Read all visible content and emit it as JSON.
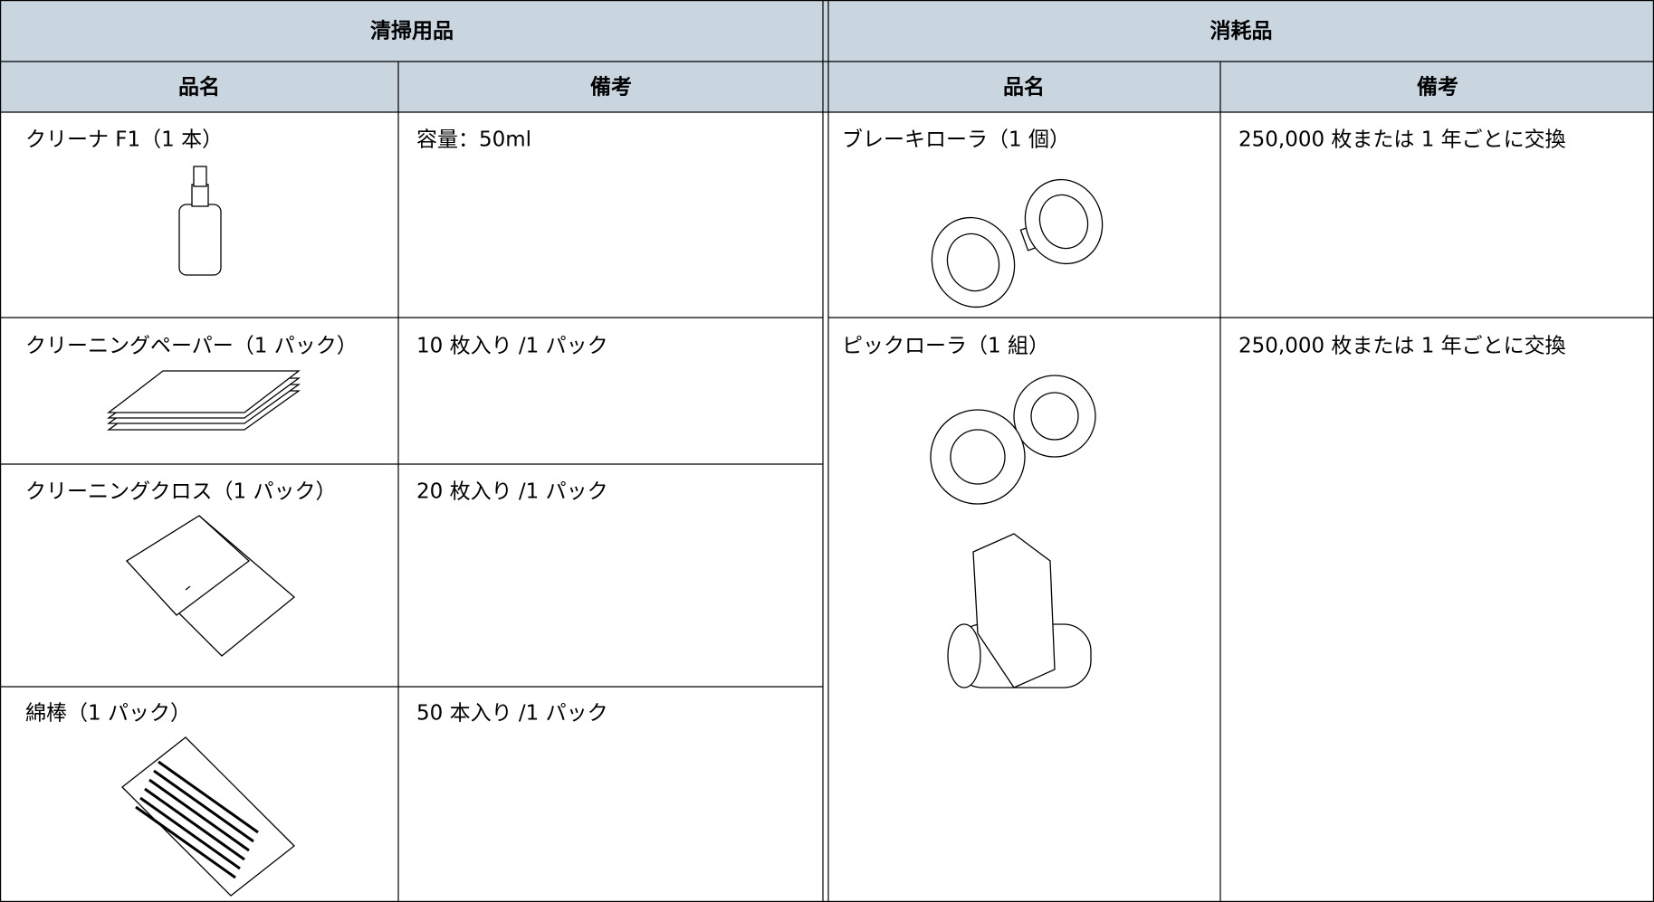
{
  "header": {
    "cleaning": "清掃用品",
    "consumables": "消耗品"
  },
  "cleaning": {
    "columns": [
      "品名",
      "備考"
    ],
    "rows": [
      [
        "クリーナ F1（1 本）",
        "容量：50ml"
      ],
      [
        "クリーニングペーパー（1 パック）",
        "10 枚入り /1 パック"
      ],
      [
        "クリーニングクロス（1 パック）",
        "20 枚入り /1 パック"
      ],
      [
        "綿棒（1 パック）",
        "50 本入り /1 パック"
      ]
    ]
  },
  "consumables": {
    "columns": [
      "品名",
      "備考"
    ],
    "rows": [
      [
        "ブレーキローラ（1 個）",
        "250,000 枚または 1 年ごとに交換"
      ],
      [
        "ピックローラ（1 組）",
        "250,000 枚または 1 年ごとに交換"
      ]
    ]
  }
}
